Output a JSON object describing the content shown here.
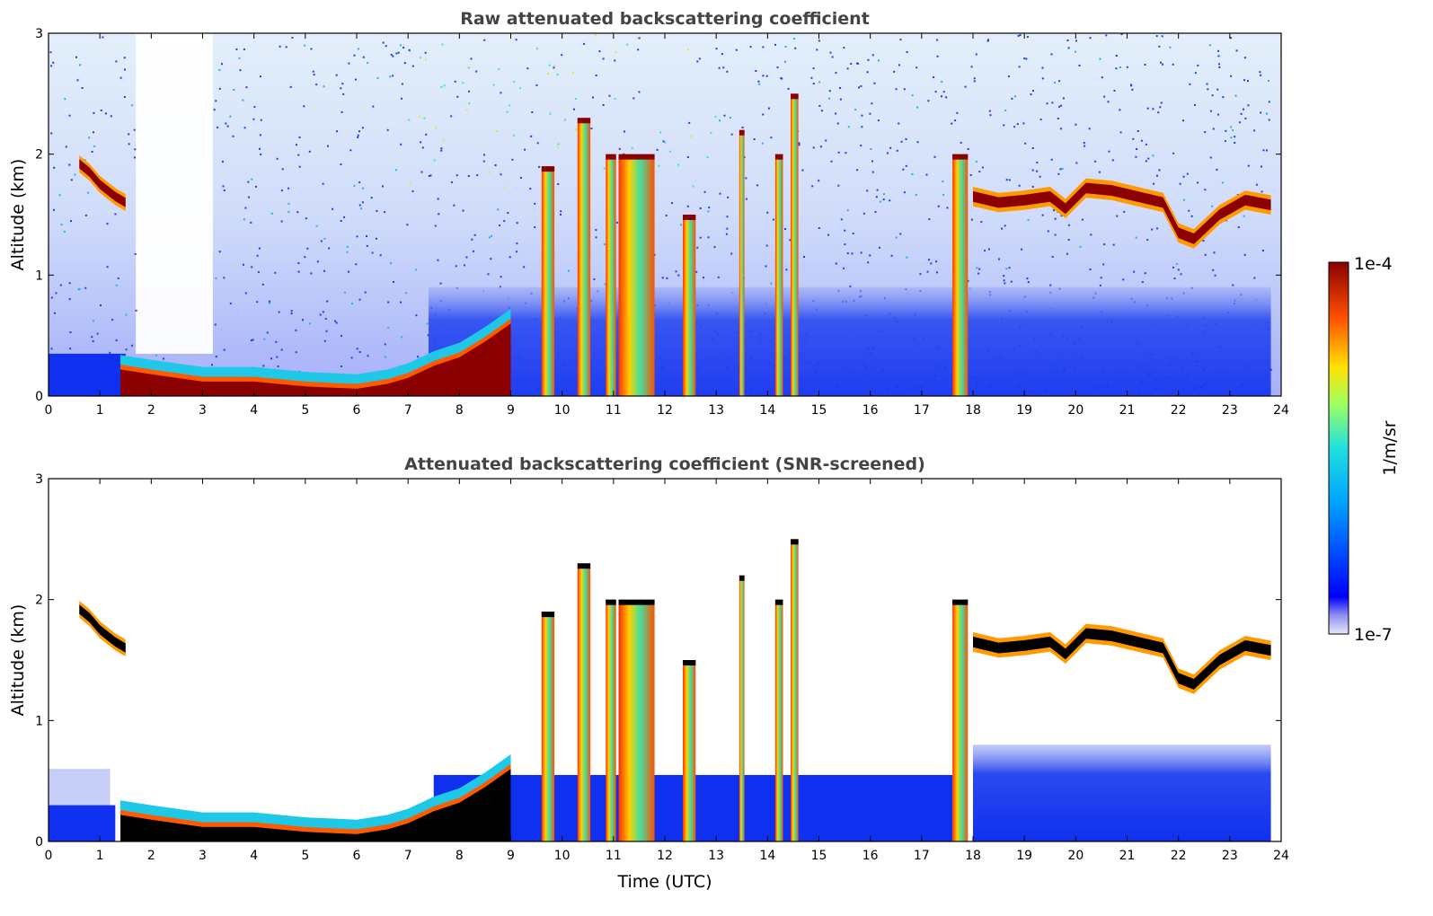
{
  "chart_data": {
    "type": "heatmap",
    "colorbar": {
      "label": "1/m/sr",
      "max_label": "1e-4",
      "min_label": "1e-7",
      "scale": "log",
      "range": [
        1e-07,
        0.0001
      ],
      "colormap": "jet"
    },
    "xlabel": "Time (UTC)",
    "x_ticks": [
      "0",
      "1",
      "2",
      "3",
      "4",
      "5",
      "6",
      "7",
      "8",
      "9",
      "10",
      "11",
      "12",
      "13",
      "14",
      "15",
      "16",
      "17",
      "18",
      "19",
      "20",
      "21",
      "22",
      "23",
      "24"
    ],
    "xlim": [
      0,
      24
    ],
    "panels": [
      {
        "title": "Raw attenuated backscattering coefficient",
        "ylabel": "Altitude (km)",
        "y_ticks": [
          "0",
          "1",
          "2",
          "3"
        ],
        "ylim": [
          0,
          3
        ],
        "screened": false
      },
      {
        "title": "Attenuated backscattering coefficient (SNR-screened)",
        "ylabel": "Altitude (km)",
        "y_ticks": [
          "0",
          "1",
          "2",
          "3"
        ],
        "ylim": [
          0,
          3
        ],
        "screened": true
      }
    ],
    "layers": {
      "boundary_layer": [
        [
          1.4,
          0.22
        ],
        [
          2,
          0.18
        ],
        [
          3,
          0.12
        ],
        [
          4,
          0.12
        ],
        [
          5,
          0.08
        ],
        [
          6,
          0.06
        ],
        [
          6.6,
          0.1
        ],
        [
          7,
          0.15
        ],
        [
          7.5,
          0.25
        ],
        [
          8,
          0.32
        ],
        [
          8.5,
          0.45
        ],
        [
          9,
          0.6
        ]
      ],
      "early_cloud": [
        [
          0.6,
          1.92
        ],
        [
          0.8,
          1.85
        ],
        [
          1.0,
          1.75
        ],
        [
          1.3,
          1.65
        ],
        [
          1.5,
          1.6
        ]
      ],
      "late_cloud": [
        [
          18.0,
          1.65
        ],
        [
          18.5,
          1.6
        ],
        [
          19,
          1.62
        ],
        [
          19.5,
          1.65
        ],
        [
          19.8,
          1.55
        ],
        [
          20.2,
          1.72
        ],
        [
          20.7,
          1.7
        ],
        [
          21.2,
          1.65
        ],
        [
          21.7,
          1.6
        ],
        [
          22,
          1.35
        ],
        [
          22.3,
          1.3
        ],
        [
          22.8,
          1.5
        ],
        [
          23.3,
          1.62
        ],
        [
          23.8,
          1.58
        ]
      ],
      "convective_columns": [
        [
          9.6,
          9.85,
          0,
          1.9
        ],
        [
          10.3,
          10.55,
          0,
          2.3
        ],
        [
          10.85,
          11.05,
          0,
          2.0
        ],
        [
          11.1,
          11.8,
          0,
          2.0
        ],
        [
          12.35,
          12.6,
          0,
          1.5
        ],
        [
          13.45,
          13.55,
          0,
          2.2
        ],
        [
          14.15,
          14.3,
          0,
          2.0
        ],
        [
          14.45,
          14.6,
          0,
          2.5
        ],
        [
          17.6,
          17.9,
          0,
          2.0
        ]
      ]
    }
  }
}
